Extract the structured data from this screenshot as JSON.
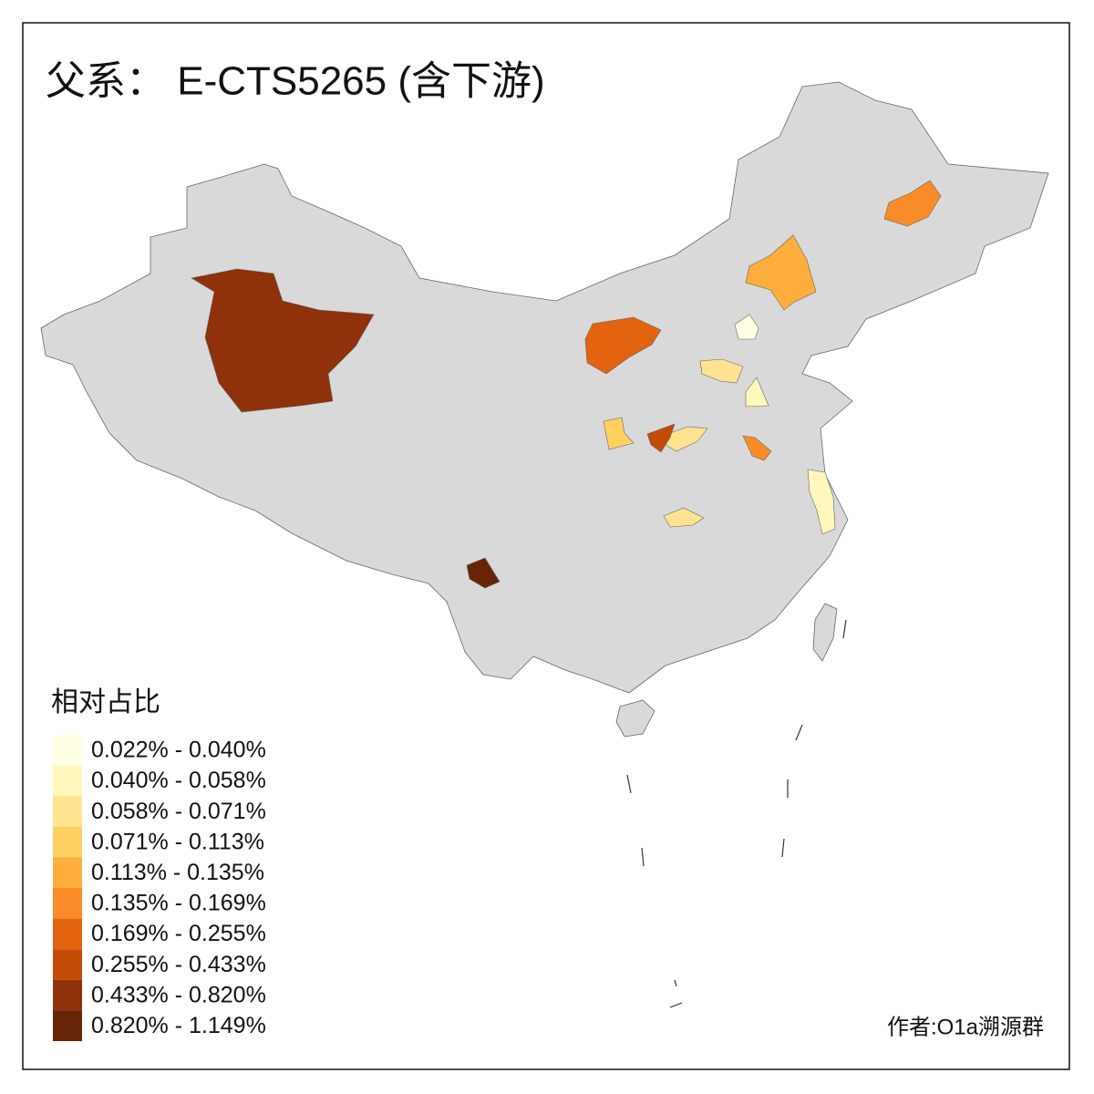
{
  "title": "父系： E-CTS5265 (含下游)",
  "legend": {
    "title": "相对占比",
    "items": [
      {
        "label": "0.022% - 0.040%",
        "color": "#ffffe5"
      },
      {
        "label": "0.040% - 0.058%",
        "color": "#fff7bc"
      },
      {
        "label": "0.058% - 0.071%",
        "color": "#fee391"
      },
      {
        "label": "0.071% - 0.113%",
        "color": "#fed062"
      },
      {
        "label": "0.113% - 0.135%",
        "color": "#fdae3d"
      },
      {
        "label": "0.135% - 0.169%",
        "color": "#f98b29"
      },
      {
        "label": "0.169% - 0.255%",
        "color": "#e3630f"
      },
      {
        "label": "0.255% - 0.433%",
        "color": "#c44b05"
      },
      {
        "label": "0.433% - 0.820%",
        "color": "#8f310a"
      },
      {
        "label": "0.820% - 1.149%",
        "color": "#662506"
      }
    ]
  },
  "credit": "作者:O1a溯源群"
}
